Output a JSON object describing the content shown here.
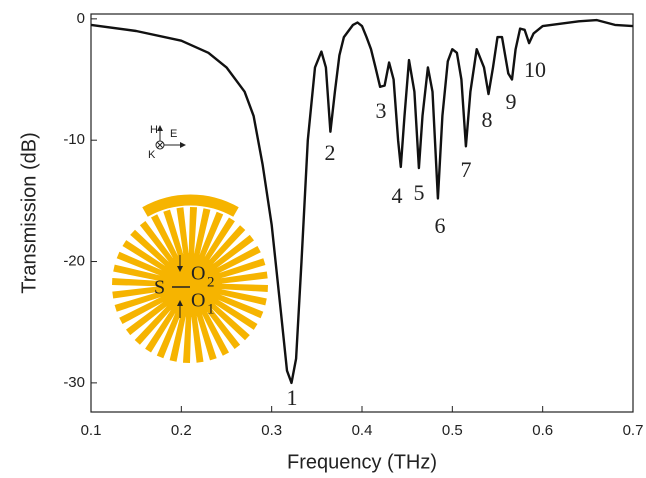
{
  "chart_data": {
    "type": "line",
    "x_label": "Frequency (THz)",
    "y_label": "Transmission (dB)",
    "xlim": [
      0.1,
      0.7
    ],
    "ylim": [
      -32.4,
      0.4
    ],
    "xticks": [
      0.1,
      0.2,
      0.3,
      0.4,
      0.5,
      0.6,
      0.7
    ],
    "yticks": [
      0,
      -10,
      -20,
      -30
    ],
    "x": [
      0.1,
      0.15,
      0.2,
      0.23,
      0.25,
      0.27,
      0.28,
      0.29,
      0.3,
      0.31,
      0.317,
      0.322,
      0.327,
      0.333,
      0.34,
      0.348,
      0.355,
      0.36,
      0.365,
      0.37,
      0.375,
      0.38,
      0.39,
      0.395,
      0.4,
      0.405,
      0.41,
      0.415,
      0.42,
      0.425,
      0.43,
      0.435,
      0.44,
      0.443,
      0.447,
      0.452,
      0.458,
      0.463,
      0.467,
      0.473,
      0.478,
      0.484,
      0.489,
      0.495,
      0.5,
      0.505,
      0.51,
      0.515,
      0.52,
      0.527,
      0.535,
      0.54,
      0.545,
      0.55,
      0.555,
      0.562,
      0.566,
      0.57,
      0.575,
      0.58,
      0.585,
      0.59,
      0.6,
      0.62,
      0.64,
      0.66,
      0.68,
      0.7
    ],
    "series": [
      {
        "color": "#111111",
        "values": [
          -0.5,
          -1.0,
          -1.8,
          -2.8,
          -4,
          -6,
          -8,
          -12,
          -17,
          -24,
          -29,
          -30,
          -28,
          -20,
          -10,
          -4,
          -2.7,
          -4,
          -9.3,
          -6,
          -3,
          -1.5,
          -0.5,
          -0.3,
          -0.6,
          -1.5,
          -2.5,
          -4,
          -5.6,
          -5.5,
          -3.6,
          -5,
          -10,
          -12.2,
          -8,
          -3.4,
          -6,
          -12.3,
          -8,
          -4,
          -6,
          -14.8,
          -8,
          -3.5,
          -2.5,
          -2.8,
          -5,
          -10.5,
          -6,
          -2.5,
          -4,
          -6.2,
          -4,
          -1.5,
          -1.5,
          -4.5,
          -5,
          -2.5,
          -0.8,
          -0.9,
          -2,
          -1.2,
          -0.6,
          -0.4,
          -0.2,
          -0.1,
          -0.5,
          -0.6
        ]
      }
    ],
    "annotations": [
      "1",
      "2",
      "3",
      "4",
      "5",
      "6",
      "7",
      "8",
      "9",
      "10"
    ],
    "polarization": {
      "h": "H",
      "e": "E",
      "k": "K"
    },
    "inset": {
      "source": "S",
      "output_top": "O",
      "output_top_sub": "2",
      "output_bottom": "O",
      "output_bottom_sub": "1"
    },
    "inset_color": "#f6b400"
  }
}
